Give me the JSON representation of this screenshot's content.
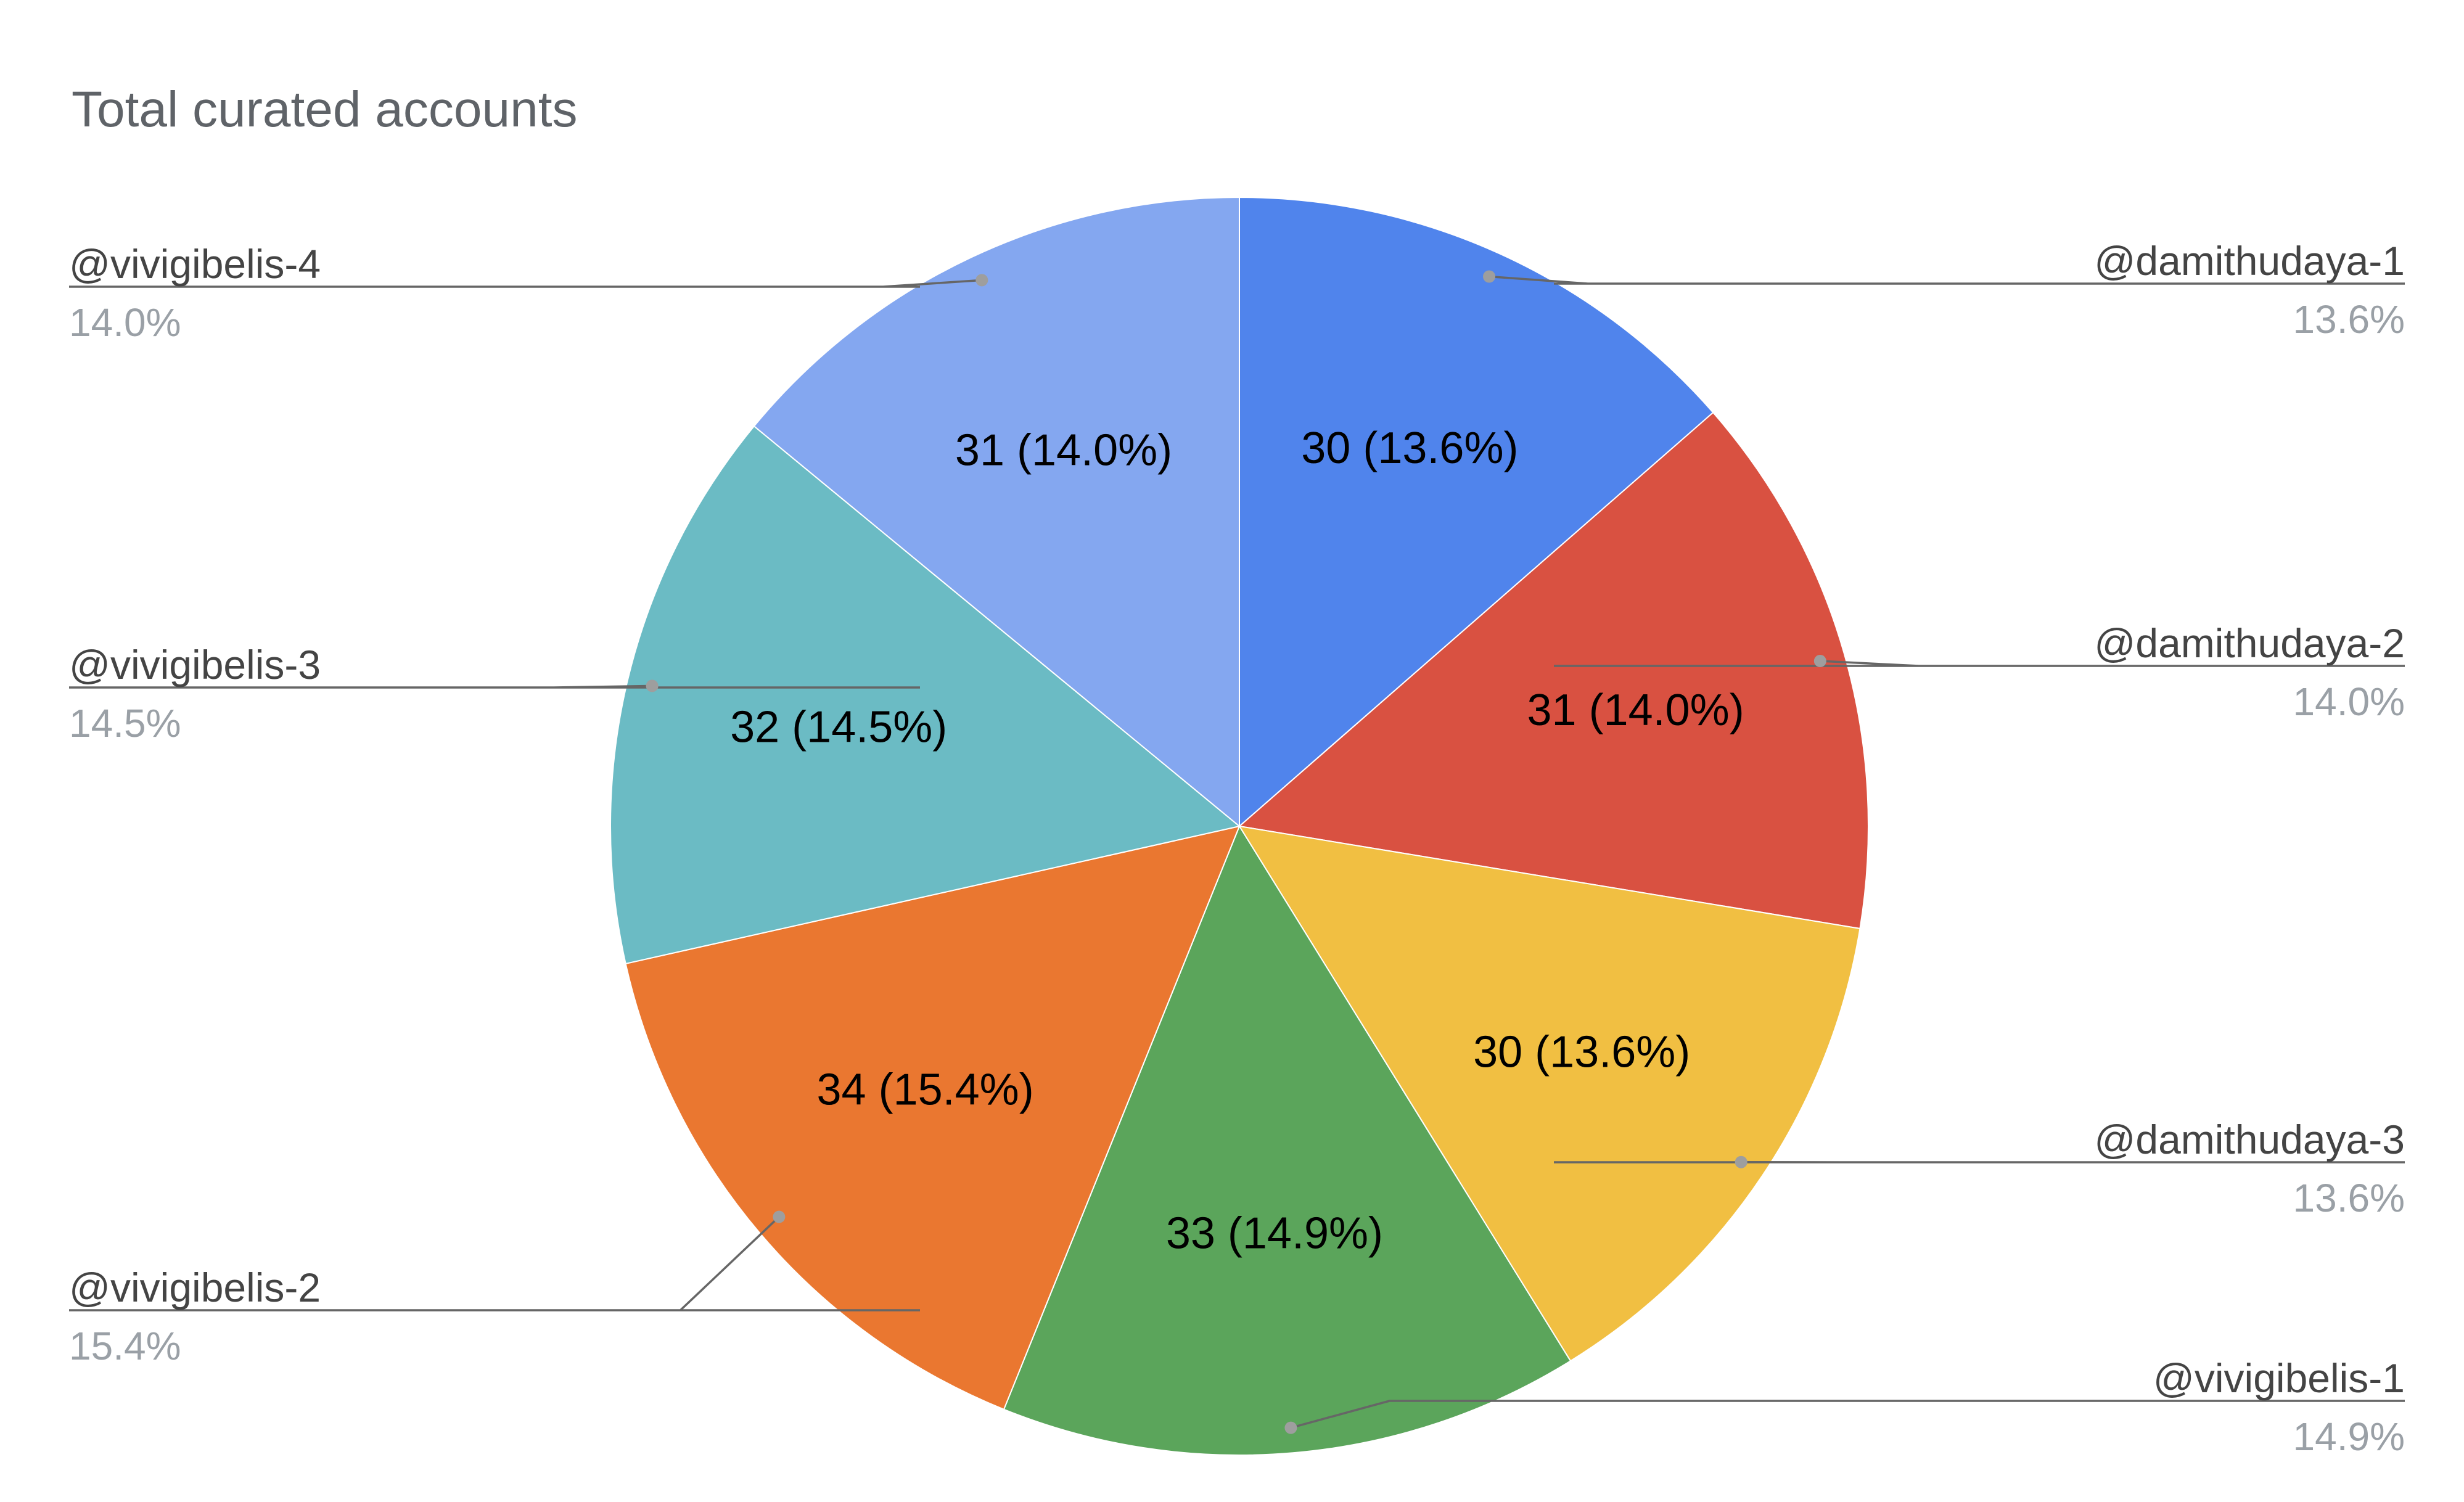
{
  "chart_data": {
    "type": "pie",
    "title": "Total curated accounts",
    "start_angle_deg": 0,
    "direction": "clockwise",
    "slices": [
      {
        "name": "@damithudaya-1",
        "value": 30,
        "percent": "13.6%",
        "label": "30 (13.6%)",
        "color": "#5084ec"
      },
      {
        "name": "@damithudaya-2",
        "value": 31,
        "percent": "14.0%",
        "label": "31 (14.0%)",
        "color": "#d95141"
      },
      {
        "name": "@damithudaya-3",
        "value": 30,
        "percent": "13.6%",
        "label": "30 (13.6%)",
        "color": "#f1bf42"
      },
      {
        "name": "@vivigibelis-1",
        "value": 33,
        "percent": "14.9%",
        "label": "33 (14.9%)",
        "color": "#5ba55b"
      },
      {
        "name": "@vivigibelis-2",
        "value": 34,
        "percent": "15.4%",
        "label": "34 (15.4%)",
        "color": "#ea7730"
      },
      {
        "name": "@vivigibelis-3",
        "value": 32,
        "percent": "14.5%",
        "label": "32 (14.5%)",
        "color": "#6bbbc4"
      },
      {
        "name": "@vivigibelis-4",
        "value": 31,
        "percent": "14.0%",
        "label": "31 (14.0%)",
        "color": "#84a7f0"
      }
    ],
    "legend": "labeled-leader-lines"
  }
}
